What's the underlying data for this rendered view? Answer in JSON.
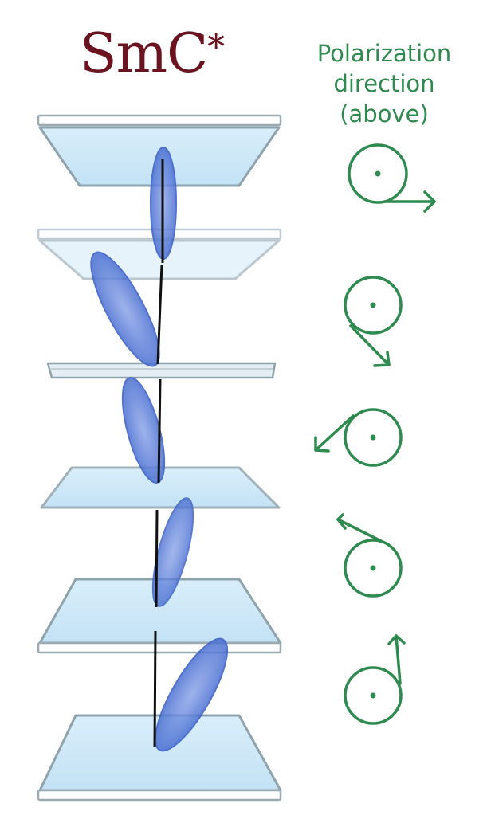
{
  "title": {
    "main": "SmC",
    "star": "*"
  },
  "legend": {
    "line1": "Polarization",
    "line2": "direction",
    "line3": "(above)"
  },
  "colors": {
    "title": "#6b1420",
    "legend": "#2e8a4f",
    "layer_fill": "#cfe8f7",
    "layer_edge": "#8fa3ad",
    "molecule": "#4a6fd1",
    "axis": "#111111"
  },
  "layers": [
    {
      "name": "layer-1",
      "style": "wide-top"
    },
    {
      "name": "layer-2",
      "style": "wide-faded"
    },
    {
      "name": "layer-3",
      "style": "thin-edge"
    },
    {
      "name": "layer-4",
      "style": "flat"
    },
    {
      "name": "layer-5",
      "style": "wide-bottom"
    },
    {
      "name": "layer-6",
      "style": "wide-bottom"
    }
  ],
  "molecules": [
    {
      "name": "molecule-1",
      "tilt_deg": 0
    },
    {
      "name": "molecule-2",
      "tilt_deg": -28
    },
    {
      "name": "molecule-3",
      "tilt_deg": -15
    },
    {
      "name": "molecule-4",
      "tilt_deg": 15
    },
    {
      "name": "molecule-5",
      "tilt_deg": 30
    }
  ],
  "polarization_arrows": [
    {
      "name": "polarization-1",
      "direction": "right"
    },
    {
      "name": "polarization-2",
      "direction": "down-right"
    },
    {
      "name": "polarization-3",
      "direction": "left-down"
    },
    {
      "name": "polarization-4",
      "direction": "up-left"
    },
    {
      "name": "polarization-5",
      "direction": "up"
    }
  ]
}
